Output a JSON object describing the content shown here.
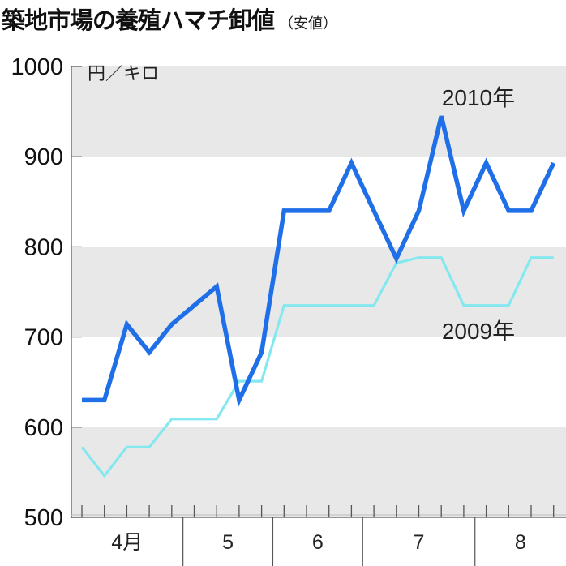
{
  "title": {
    "main": "築地市場の養殖ハマチ卸値",
    "sub": "（安値）"
  },
  "unit": "円／キロ",
  "colors": {
    "series_2010": "#1f6fe8",
    "series_2009": "#84e8ef",
    "band": "#e8e8e8",
    "axis": "#555555"
  },
  "chart_data": {
    "type": "line",
    "title": "築地市場の養殖ハマチ卸値（安値）",
    "xlabel": "",
    "ylabel": "円／キロ",
    "ylim": [
      500,
      1000
    ],
    "yticks": [
      500,
      600,
      700,
      800,
      900,
      1000
    ],
    "grid": "alternating horizontal bands (gray at 900-1000, 700-800, 500-600)",
    "x_periods": 22,
    "month_groups": [
      {
        "label": "4月",
        "start": 0,
        "end": 4
      },
      {
        "label": "5",
        "start": 5,
        "end": 8
      },
      {
        "label": "6",
        "start": 9,
        "end": 12
      },
      {
        "label": "7",
        "start": 13,
        "end": 17
      },
      {
        "label": "8",
        "start": 18,
        "end": 21
      }
    ],
    "series": [
      {
        "name": "2010年",
        "values": [
          630,
          630,
          714,
          683,
          714,
          null,
          756,
          630,
          683,
          840,
          840,
          840,
          893,
          null,
          787,
          840,
          945,
          840,
          893,
          840,
          840,
          893
        ]
      },
      {
        "name": "2009年",
        "values": [
          578,
          546,
          578,
          578,
          609,
          609,
          609,
          651,
          651,
          735,
          735,
          735,
          735,
          735,
          782,
          788,
          788,
          735,
          735,
          735,
          788,
          788
        ]
      }
    ],
    "series_labels": [
      {
        "text": "2010年",
        "x_index": 16,
        "position": "above"
      },
      {
        "text": "2009年",
        "x_index": 16,
        "position": "below"
      }
    ]
  }
}
